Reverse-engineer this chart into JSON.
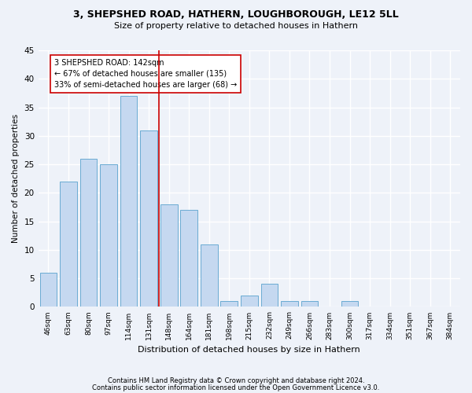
{
  "title1": "3, SHEPSHED ROAD, HATHERN, LOUGHBOROUGH, LE12 5LL",
  "title2": "Size of property relative to detached houses in Hathern",
  "xlabel": "Distribution of detached houses by size in Hathern",
  "ylabel": "Number of detached properties",
  "categories": [
    "46sqm",
    "63sqm",
    "80sqm",
    "97sqm",
    "114sqm",
    "131sqm",
    "148sqm",
    "164sqm",
    "181sqm",
    "198sqm",
    "215sqm",
    "232sqm",
    "249sqm",
    "266sqm",
    "283sqm",
    "300sqm",
    "317sqm",
    "334sqm",
    "351sqm",
    "367sqm",
    "384sqm"
  ],
  "values": [
    6,
    22,
    26,
    25,
    37,
    31,
    18,
    17,
    11,
    1,
    2,
    4,
    1,
    1,
    0,
    1,
    0,
    0,
    0,
    0,
    0
  ],
  "bar_color": "#c5d8f0",
  "bar_edge_color": "#6aabd2",
  "vline_x": 5.5,
  "vline_color": "#cc0000",
  "annotation_text": "3 SHEPSHED ROAD: 142sqm\n← 67% of detached houses are smaller (135)\n33% of semi-detached houses are larger (68) →",
  "annotation_box_color": "#ffffff",
  "annotation_box_edge": "#cc0000",
  "ylim": [
    0,
    45
  ],
  "yticks": [
    0,
    5,
    10,
    15,
    20,
    25,
    30,
    35,
    40,
    45
  ],
  "footer1": "Contains HM Land Registry data © Crown copyright and database right 2024.",
  "footer2": "Contains public sector information licensed under the Open Government Licence v3.0.",
  "bg_color": "#eef2f9",
  "plot_bg_color": "#eef2f9",
  "grid_color": "#ffffff"
}
